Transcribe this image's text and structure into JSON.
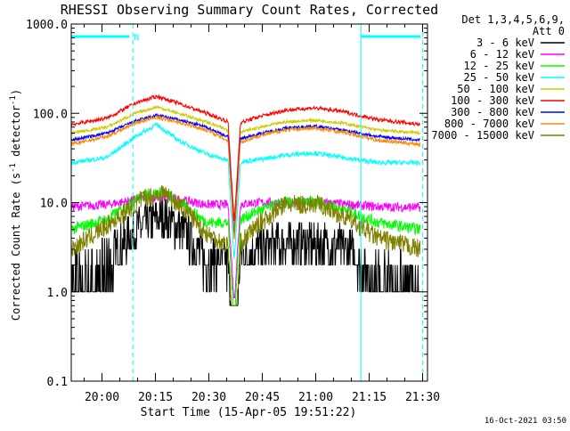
{
  "chart_data": {
    "type": "line",
    "title": "RHESSI Observing Summary Count Rates, Corrected",
    "xlabel": "Start Time (15-Apr-05 19:51:22)",
    "ylabel": "Corrected Count Rate (s",
    "ylabel_exp1": "-1",
    "ylabel_mid": " detector",
    "ylabel_exp2": "-1",
    "ylabel_end": ")",
    "yscale": "log",
    "ylim": [
      0.1,
      1000.0
    ],
    "xlim_minutes": [
      0,
      100
    ],
    "x_tick_labels": [
      "20:00",
      "20:15",
      "20:30",
      "20:45",
      "21:00",
      "21:15",
      "21:30"
    ],
    "x_ticks_minutes": [
      8.63,
      23.63,
      38.63,
      53.63,
      68.63,
      83.63,
      98.63
    ],
    "y_tick_labels": [
      "0.1",
      "1.0",
      "10.0",
      "100.0",
      "1000.0"
    ],
    "y_ticks": [
      0.1,
      1,
      10,
      100,
      1000
    ],
    "legend_title_1": "Det 1,3,4,5,6,9,",
    "legend_title_2": "Att 0",
    "legend_placement": "right",
    "footer_date": "16-Oct-2021 03:50",
    "annotation_n": "N",
    "annotation_colors": {
      "night": "#00ffff"
    },
    "series": [
      {
        "name": "3 - 6 keV",
        "color": "#000000",
        "points": [
          [
            0,
            1.5
          ],
          [
            10,
            2.5
          ],
          [
            20,
            5.5
          ],
          [
            26,
            7
          ],
          [
            32,
            4.5
          ],
          [
            38,
            2.2
          ],
          [
            46,
            2.2
          ],
          [
            52,
            3
          ],
          [
            60,
            3.5
          ],
          [
            70,
            3.5
          ],
          [
            78,
            3
          ],
          [
            82,
            2
          ],
          [
            92,
            1.5
          ],
          [
            98,
            1.3
          ]
        ]
      },
      {
        "name": "6 - 12 keV",
        "color": "#ff00ff",
        "points": [
          [
            0,
            9
          ],
          [
            10,
            9.5
          ],
          [
            20,
            11
          ],
          [
            26,
            11.5
          ],
          [
            32,
            10.5
          ],
          [
            38,
            9.5
          ],
          [
            46,
            9.5
          ],
          [
            52,
            10
          ],
          [
            60,
            10
          ],
          [
            70,
            10
          ],
          [
            78,
            9.5
          ],
          [
            86,
            9
          ],
          [
            98,
            8.8
          ]
        ]
      },
      {
        "name": "12 - 25 keV",
        "color": "#00ff00",
        "points": [
          [
            0,
            5
          ],
          [
            10,
            6.5
          ],
          [
            20,
            12
          ],
          [
            26,
            13
          ],
          [
            32,
            9
          ],
          [
            38,
            6
          ],
          [
            46,
            6
          ],
          [
            52,
            8
          ],
          [
            60,
            10
          ],
          [
            70,
            10
          ],
          [
            78,
            8
          ],
          [
            86,
            6
          ],
          [
            98,
            5
          ]
        ]
      },
      {
        "name": "25 - 50 keV",
        "color": "#00ffff",
        "points": [
          [
            0,
            28
          ],
          [
            10,
            32
          ],
          [
            18,
            55
          ],
          [
            24,
            75
          ],
          [
            30,
            50
          ],
          [
            38,
            35
          ],
          [
            46,
            28
          ],
          [
            52,
            30
          ],
          [
            60,
            34
          ],
          [
            68,
            36
          ],
          [
            76,
            32
          ],
          [
            86,
            28
          ],
          [
            98,
            28
          ]
        ]
      },
      {
        "name": "50 - 100 keV",
        "color": "#cccc00",
        "points": [
          [
            0,
            60
          ],
          [
            10,
            70
          ],
          [
            18,
            100
          ],
          [
            24,
            118
          ],
          [
            30,
            100
          ],
          [
            38,
            80
          ],
          [
            46,
            60
          ],
          [
            52,
            68
          ],
          [
            60,
            80
          ],
          [
            68,
            84
          ],
          [
            76,
            78
          ],
          [
            86,
            65
          ],
          [
            98,
            60
          ]
        ]
      },
      {
        "name": "100 - 300 keV",
        "color": "#ff0000",
        "points": [
          [
            0,
            75
          ],
          [
            10,
            88
          ],
          [
            18,
            130
          ],
          [
            24,
            155
          ],
          [
            30,
            130
          ],
          [
            38,
            100
          ],
          [
            46,
            75
          ],
          [
            52,
            90
          ],
          [
            60,
            108
          ],
          [
            68,
            115
          ],
          [
            76,
            105
          ],
          [
            86,
            85
          ],
          [
            98,
            75
          ]
        ]
      },
      {
        "name": "300 - 800 keV",
        "color": "#0000ff",
        "points": [
          [
            0,
            50
          ],
          [
            10,
            60
          ],
          [
            18,
            82
          ],
          [
            24,
            95
          ],
          [
            30,
            85
          ],
          [
            38,
            70
          ],
          [
            46,
            50
          ],
          [
            52,
            58
          ],
          [
            60,
            68
          ],
          [
            68,
            72
          ],
          [
            76,
            65
          ],
          [
            86,
            55
          ],
          [
            98,
            50
          ]
        ]
      },
      {
        "name": "800 - 7000 keV",
        "color": "#ff8800",
        "points": [
          [
            0,
            45
          ],
          [
            10,
            55
          ],
          [
            18,
            78
          ],
          [
            24,
            90
          ],
          [
            30,
            80
          ],
          [
            38,
            65
          ],
          [
            46,
            45
          ],
          [
            52,
            55
          ],
          [
            60,
            65
          ],
          [
            68,
            68
          ],
          [
            76,
            62
          ],
          [
            86,
            50
          ],
          [
            98,
            45
          ]
        ]
      },
      {
        "name": "7000 - 15000 keV",
        "color": "#808000",
        "points": [
          [
            0,
            3
          ],
          [
            10,
            5.5
          ],
          [
            20,
            11
          ],
          [
            26,
            13
          ],
          [
            32,
            8.5
          ],
          [
            38,
            4.5
          ],
          [
            46,
            3
          ],
          [
            52,
            5.5
          ],
          [
            60,
            9.5
          ],
          [
            70,
            9.5
          ],
          [
            78,
            6.5
          ],
          [
            86,
            4
          ],
          [
            98,
            3
          ]
        ]
      }
    ],
    "dip_minutes": [
      44,
      47.5
    ],
    "night_bars_minutes": [
      [
        0,
        16.3
      ],
      [
        81.3,
        98
      ]
    ],
    "saa_lines_minutes": [
      0,
      81.3
    ],
    "dashed_lines_minutes": [
      17.3,
      98.6
    ]
  }
}
